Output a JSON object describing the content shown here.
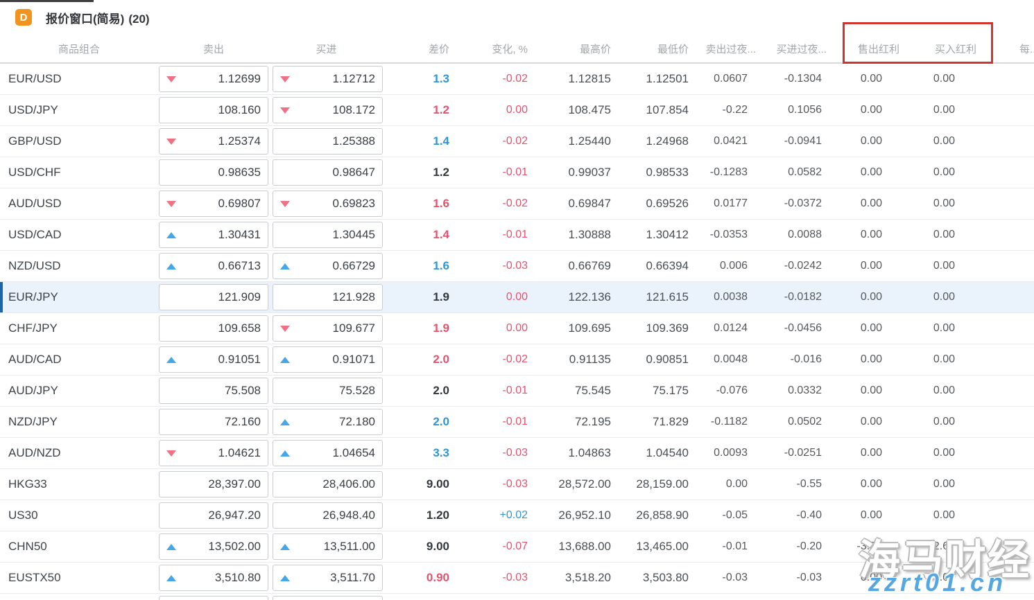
{
  "window": {
    "badge": "D",
    "title": "报价窗口(简易)",
    "count": "(20)"
  },
  "table": {
    "headers": [
      {
        "key": "symbol",
        "label": "商品组合"
      },
      {
        "key": "sell",
        "label": "卖出"
      },
      {
        "key": "buy",
        "label": "买进"
      },
      {
        "key": "spread",
        "label": "差价"
      },
      {
        "key": "change",
        "label": "变化, %"
      },
      {
        "key": "high",
        "label": "最高价"
      },
      {
        "key": "low",
        "label": "最低价"
      },
      {
        "key": "sell_swap",
        "label": "卖出过夜..."
      },
      {
        "key": "buy_swap",
        "label": "买进过夜..."
      },
      {
        "key": "sell_dividend",
        "label": "售出红利"
      },
      {
        "key": "buy_dividend",
        "label": "买入红利"
      },
      {
        "key": "per",
        "label": "每..."
      }
    ],
    "rows": [
      {
        "symbol": "EUR/USD",
        "sell": "1.12699",
        "sell_arrow": "down",
        "buy": "1.12712",
        "buy_arrow": "down",
        "spread": "1.3",
        "spread_color": "blue",
        "change": "-0.02",
        "change_color": "red",
        "high": "1.12815",
        "low": "1.12501",
        "sell_swap": "0.0607",
        "buy_swap": "-0.1304",
        "sell_dividend": "0.00",
        "buy_dividend": "0.00",
        "highlighted": false
      },
      {
        "symbol": "USD/JPY",
        "sell": "108.160",
        "sell_arrow": null,
        "buy": "108.172",
        "buy_arrow": "down",
        "spread": "1.2",
        "spread_color": "red",
        "change": "0.00",
        "change_color": "red",
        "high": "108.475",
        "low": "107.854",
        "sell_swap": "-0.22",
        "buy_swap": "0.1056",
        "sell_dividend": "0.00",
        "buy_dividend": "0.00",
        "highlighted": false
      },
      {
        "symbol": "GBP/USD",
        "sell": "1.25374",
        "sell_arrow": "down",
        "buy": "1.25388",
        "buy_arrow": null,
        "spread": "1.4",
        "spread_color": "blue",
        "change": "-0.02",
        "change_color": "red",
        "high": "1.25440",
        "low": "1.24968",
        "sell_swap": "0.0421",
        "buy_swap": "-0.0941",
        "sell_dividend": "0.00",
        "buy_dividend": "0.00",
        "highlighted": false
      },
      {
        "symbol": "USD/CHF",
        "sell": "0.98635",
        "sell_arrow": null,
        "buy": "0.98647",
        "buy_arrow": null,
        "spread": "1.2",
        "spread_color": "dark",
        "change": "-0.01",
        "change_color": "red",
        "high": "0.99037",
        "low": "0.98533",
        "sell_swap": "-0.1283",
        "buy_swap": "0.0582",
        "sell_dividend": "0.00",
        "buy_dividend": "0.00",
        "highlighted": false
      },
      {
        "symbol": "AUD/USD",
        "sell": "0.69807",
        "sell_arrow": "down",
        "buy": "0.69823",
        "buy_arrow": "down",
        "spread": "1.6",
        "spread_color": "red",
        "change": "-0.02",
        "change_color": "red",
        "high": "0.69847",
        "low": "0.69526",
        "sell_swap": "0.0177",
        "buy_swap": "-0.0372",
        "sell_dividend": "0.00",
        "buy_dividend": "0.00",
        "highlighted": false
      },
      {
        "symbol": "USD/CAD",
        "sell": "1.30431",
        "sell_arrow": "up",
        "buy": "1.30445",
        "buy_arrow": null,
        "spread": "1.4",
        "spread_color": "red",
        "change": "-0.01",
        "change_color": "red",
        "high": "1.30888",
        "low": "1.30412",
        "sell_swap": "-0.0353",
        "buy_swap": "0.0088",
        "sell_dividend": "0.00",
        "buy_dividend": "0.00",
        "highlighted": false
      },
      {
        "symbol": "NZD/USD",
        "sell": "0.66713",
        "sell_arrow": "up",
        "buy": "0.66729",
        "buy_arrow": "up",
        "spread": "1.6",
        "spread_color": "blue",
        "change": "-0.03",
        "change_color": "red",
        "high": "0.66769",
        "low": "0.66394",
        "sell_swap": "0.006",
        "buy_swap": "-0.0242",
        "sell_dividend": "0.00",
        "buy_dividend": "0.00",
        "highlighted": false
      },
      {
        "symbol": "EUR/JPY",
        "sell": "121.909",
        "sell_arrow": null,
        "buy": "121.928",
        "buy_arrow": null,
        "spread": "1.9",
        "spread_color": "dark",
        "change": "0.00",
        "change_color": "red",
        "high": "122.136",
        "low": "121.615",
        "sell_swap": "0.0038",
        "buy_swap": "-0.0182",
        "sell_dividend": "0.00",
        "buy_dividend": "0.00",
        "highlighted": true
      },
      {
        "symbol": "CHF/JPY",
        "sell": "109.658",
        "sell_arrow": null,
        "buy": "109.677",
        "buy_arrow": "down",
        "spread": "1.9",
        "spread_color": "red",
        "change": "0.00",
        "change_color": "red",
        "high": "109.695",
        "low": "109.369",
        "sell_swap": "0.0124",
        "buy_swap": "-0.0456",
        "sell_dividend": "0.00",
        "buy_dividend": "0.00",
        "highlighted": false
      },
      {
        "symbol": "AUD/CAD",
        "sell": "0.91051",
        "sell_arrow": "up",
        "buy": "0.91071",
        "buy_arrow": "up",
        "spread": "2.0",
        "spread_color": "red",
        "change": "-0.02",
        "change_color": "red",
        "high": "0.91135",
        "low": "0.90851",
        "sell_swap": "0.0048",
        "buy_swap": "-0.016",
        "sell_dividend": "0.00",
        "buy_dividend": "0.00",
        "highlighted": false
      },
      {
        "symbol": "AUD/JPY",
        "sell": "75.508",
        "sell_arrow": null,
        "buy": "75.528",
        "buy_arrow": null,
        "spread": "2.0",
        "spread_color": "dark",
        "change": "-0.01",
        "change_color": "red",
        "high": "75.545",
        "low": "75.175",
        "sell_swap": "-0.076",
        "buy_swap": "0.0332",
        "sell_dividend": "0.00",
        "buy_dividend": "0.00",
        "highlighted": false
      },
      {
        "symbol": "NZD/JPY",
        "sell": "72.160",
        "sell_arrow": null,
        "buy": "72.180",
        "buy_arrow": "up",
        "spread": "2.0",
        "spread_color": "blue",
        "change": "-0.01",
        "change_color": "red",
        "high": "72.195",
        "low": "71.829",
        "sell_swap": "-0.1182",
        "buy_swap": "0.0502",
        "sell_dividend": "0.00",
        "buy_dividend": "0.00",
        "highlighted": false
      },
      {
        "symbol": "AUD/NZD",
        "sell": "1.04621",
        "sell_arrow": "down",
        "buy": "1.04654",
        "buy_arrow": "up",
        "spread": "3.3",
        "spread_color": "blue",
        "change": "-0.03",
        "change_color": "red",
        "high": "1.04863",
        "low": "1.04540",
        "sell_swap": "0.0093",
        "buy_swap": "-0.0251",
        "sell_dividend": "0.00",
        "buy_dividend": "0.00",
        "highlighted": false
      },
      {
        "symbol": "HKG33",
        "sell": "28,397.00",
        "sell_arrow": null,
        "buy": "28,406.00",
        "buy_arrow": null,
        "spread": "9.00",
        "spread_color": "dark",
        "change": "-0.03",
        "change_color": "red",
        "high": "28,572.00",
        "low": "28,159.00",
        "sell_swap": "0.00",
        "buy_swap": "-0.55",
        "sell_dividend": "0.00",
        "buy_dividend": "0.00",
        "highlighted": false
      },
      {
        "symbol": "US30",
        "sell": "26,947.20",
        "sell_arrow": null,
        "buy": "26,948.40",
        "buy_arrow": null,
        "spread": "1.20",
        "spread_color": "dark",
        "change": "+0.02",
        "change_color": "blue",
        "high": "26,952.10",
        "low": "26,858.90",
        "sell_swap": "-0.05",
        "buy_swap": "-0.40",
        "sell_dividend": "0.00",
        "buy_dividend": "0.00",
        "highlighted": false
      },
      {
        "symbol": "CHN50",
        "sell": "13,502.00",
        "sell_arrow": "up",
        "buy": "13,511.00",
        "buy_arrow": "up",
        "spread": "9.00",
        "spread_color": "dark",
        "change": "-0.07",
        "change_color": "red",
        "high": "13,688.00",
        "low": "13,465.00",
        "sell_swap": "-0.01",
        "buy_swap": "-0.20",
        "sell_dividend": "-3.53",
        "buy_dividend": "2.64",
        "highlighted": false
      },
      {
        "symbol": "EUSTX50",
        "sell": "3,510.80",
        "sell_arrow": "up",
        "buy": "3,511.70",
        "buy_arrow": "up",
        "spread": "0.90",
        "spread_color": "red",
        "change": "-0.03",
        "change_color": "red",
        "high": "3,518.20",
        "low": "3,503.80",
        "sell_swap": "-0.03",
        "buy_swap": "-0.03",
        "sell_dividend": "0.00",
        "buy_dividend": "0.00",
        "highlighted": false
      }
    ]
  },
  "annotation": {
    "note": "red rectangle highlighting 售出红利 and 买入红利 columns"
  },
  "watermark": {
    "line1": "海马财经",
    "line2": "zzrt01.cn"
  },
  "colors": {
    "up_blue": "#45a7e8",
    "down_pink": "#ee7186",
    "spread_blue": "#2f96d6",
    "spread_red": "#e4526e",
    "highlight_bg": "#eaf2fb",
    "highlight_bar": "#1d67a8",
    "annotation_red": "#d0342c",
    "badge_orange": "#f0941f",
    "watermark_blue": "#54a7e0"
  }
}
